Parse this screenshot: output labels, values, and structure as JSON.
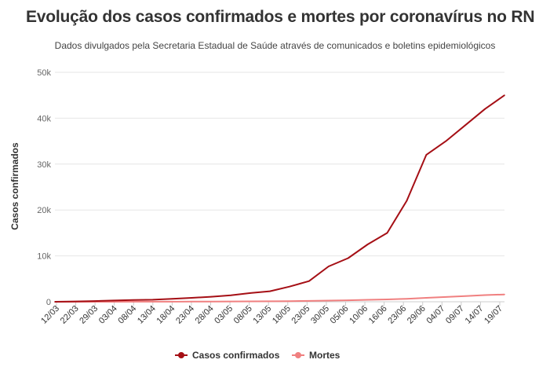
{
  "chart_data": {
    "type": "line",
    "title": "Evolução dos casos confirmados e mortes por coronavírus no RN",
    "subtitle": "Dados divulgados pela Secretaria Estadual de Saúde através de comunicados e boletins epidemiológicos",
    "ylabel": "Casos confirmados",
    "xlabel": "",
    "ylim": [
      0,
      50000
    ],
    "yticks": [
      0,
      10000,
      20000,
      30000,
      40000,
      50000
    ],
    "ytick_labels": [
      "0",
      "10k",
      "20k",
      "30k",
      "40k",
      "50k"
    ],
    "x_tick_labels": [
      "12/03",
      "22/03",
      "29/03",
      "03/04",
      "08/04",
      "13/04",
      "18/04",
      "23/04",
      "28/04",
      "03/05",
      "08/05",
      "13/05",
      "18/05",
      "23/05",
      "30/05",
      "05/06",
      "10/06",
      "16/06",
      "23/06",
      "29/06",
      "04/07",
      "09/07",
      "14/07",
      "19/07"
    ],
    "grid": true,
    "legend_position": "bottom",
    "x": [
      "12/03",
      "22/03",
      "29/03",
      "03/04",
      "08/04",
      "13/04",
      "18/04",
      "23/04",
      "28/04",
      "03/05",
      "08/05",
      "13/05",
      "18/05",
      "23/05",
      "30/05",
      "05/06",
      "10/06",
      "16/06",
      "23/06",
      "29/06",
      "04/07",
      "09/07",
      "14/07",
      "19/07"
    ],
    "series": [
      {
        "name": "Casos confirmados",
        "color": "#a50f15",
        "values": [
          1,
          60,
          150,
          270,
          380,
          450,
          650,
          850,
          1100,
          1400,
          1900,
          2300,
          3300,
          4500,
          7700,
          9500,
          12500,
          15000,
          22000,
          32000,
          35000,
          38500,
          42000,
          45000
        ]
      },
      {
        "name": "Mortes",
        "color": "#f08080",
        "values": [
          0,
          1,
          3,
          6,
          10,
          14,
          22,
          32,
          45,
          60,
          80,
          105,
          140,
          185,
          250,
          330,
          420,
          520,
          650,
          850,
          1050,
          1250,
          1450,
          1600
        ]
      }
    ]
  }
}
